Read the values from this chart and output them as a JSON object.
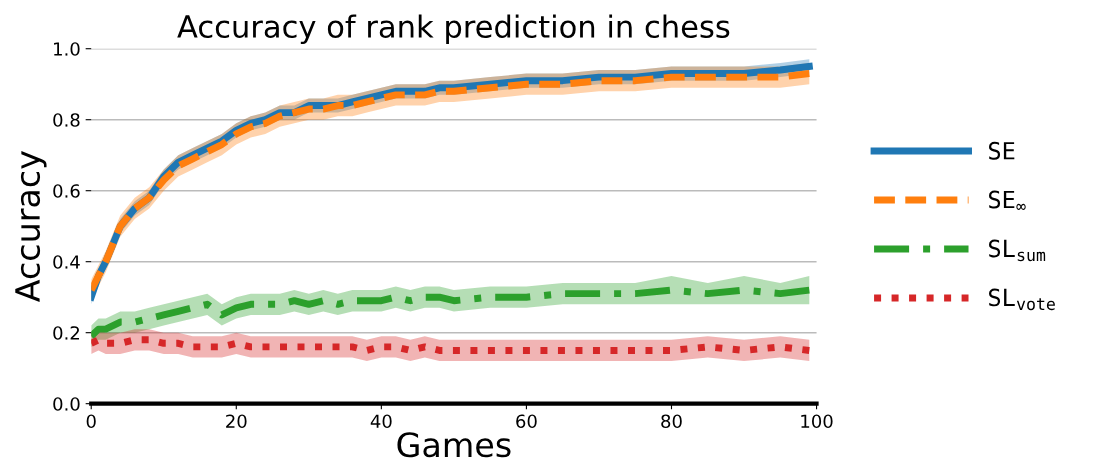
{
  "chart_data": {
    "type": "line",
    "title": "Accuracy of rank prediction in chess",
    "xlabel": "Games",
    "ylabel": "Accuracy",
    "x": [
      0,
      1,
      2,
      4,
      6,
      8,
      10,
      12,
      14,
      16,
      18,
      20,
      22,
      24,
      26,
      28,
      30,
      32,
      34,
      36,
      38,
      40,
      42,
      44,
      46,
      48,
      50,
      55,
      60,
      65,
      70,
      75,
      80,
      85,
      90,
      95,
      99
    ],
    "series": [
      {
        "name": "SE",
        "color": "#1f77b4",
        "line_style": "solid",
        "values": [
          0.3,
          0.36,
          0.4,
          0.5,
          0.55,
          0.58,
          0.64,
          0.68,
          0.7,
          0.72,
          0.74,
          0.77,
          0.79,
          0.8,
          0.82,
          0.82,
          0.84,
          0.84,
          0.84,
          0.85,
          0.86,
          0.87,
          0.88,
          0.88,
          0.88,
          0.89,
          0.89,
          0.9,
          0.91,
          0.91,
          0.92,
          0.92,
          0.93,
          0.93,
          0.93,
          0.94,
          0.95
        ],
        "lower": [
          0.28,
          0.34,
          0.38,
          0.48,
          0.53,
          0.56,
          0.62,
          0.66,
          0.68,
          0.7,
          0.72,
          0.75,
          0.77,
          0.78,
          0.8,
          0.8,
          0.82,
          0.82,
          0.82,
          0.83,
          0.84,
          0.85,
          0.86,
          0.86,
          0.86,
          0.87,
          0.87,
          0.88,
          0.89,
          0.89,
          0.9,
          0.9,
          0.91,
          0.91,
          0.91,
          0.92,
          0.93
        ],
        "upper": [
          0.32,
          0.38,
          0.42,
          0.52,
          0.57,
          0.6,
          0.66,
          0.7,
          0.72,
          0.74,
          0.76,
          0.79,
          0.81,
          0.82,
          0.84,
          0.84,
          0.86,
          0.86,
          0.86,
          0.87,
          0.88,
          0.89,
          0.9,
          0.9,
          0.9,
          0.91,
          0.91,
          0.92,
          0.93,
          0.93,
          0.94,
          0.94,
          0.95,
          0.95,
          0.95,
          0.96,
          0.97
        ]
      },
      {
        "name": "SE$_{∞}$",
        "color": "#ff7f0e",
        "line_style": "dashed",
        "values": [
          0.32,
          0.36,
          0.4,
          0.5,
          0.55,
          0.58,
          0.63,
          0.67,
          0.69,
          0.71,
          0.73,
          0.76,
          0.78,
          0.79,
          0.81,
          0.82,
          0.83,
          0.83,
          0.84,
          0.84,
          0.85,
          0.86,
          0.87,
          0.87,
          0.87,
          0.88,
          0.88,
          0.89,
          0.9,
          0.9,
          0.91,
          0.91,
          0.92,
          0.92,
          0.92,
          0.92,
          0.93
        ],
        "lower": [
          0.29,
          0.33,
          0.37,
          0.47,
          0.52,
          0.55,
          0.6,
          0.64,
          0.66,
          0.68,
          0.7,
          0.73,
          0.75,
          0.76,
          0.78,
          0.79,
          0.8,
          0.8,
          0.81,
          0.81,
          0.82,
          0.83,
          0.84,
          0.84,
          0.84,
          0.85,
          0.85,
          0.86,
          0.87,
          0.87,
          0.88,
          0.88,
          0.89,
          0.89,
          0.89,
          0.89,
          0.9
        ],
        "upper": [
          0.35,
          0.39,
          0.43,
          0.53,
          0.58,
          0.61,
          0.66,
          0.7,
          0.72,
          0.74,
          0.76,
          0.79,
          0.81,
          0.82,
          0.84,
          0.85,
          0.86,
          0.86,
          0.87,
          0.87,
          0.88,
          0.89,
          0.9,
          0.9,
          0.9,
          0.91,
          0.91,
          0.92,
          0.93,
          0.93,
          0.94,
          0.94,
          0.95,
          0.95,
          0.95,
          0.95,
          0.96
        ]
      },
      {
        "name": "SL$_{sum}$",
        "color": "#2ca02c",
        "line_style": "dashdot",
        "values": [
          0.19,
          0.21,
          0.21,
          0.23,
          0.23,
          0.24,
          0.25,
          0.26,
          0.27,
          0.28,
          0.25,
          0.27,
          0.28,
          0.28,
          0.28,
          0.29,
          0.28,
          0.29,
          0.28,
          0.29,
          0.29,
          0.29,
          0.3,
          0.29,
          0.3,
          0.3,
          0.29,
          0.3,
          0.3,
          0.31,
          0.31,
          0.31,
          0.32,
          0.31,
          0.32,
          0.31,
          0.32
        ],
        "lower": [
          0.16,
          0.18,
          0.18,
          0.2,
          0.2,
          0.21,
          0.22,
          0.23,
          0.24,
          0.25,
          0.22,
          0.24,
          0.25,
          0.25,
          0.25,
          0.26,
          0.25,
          0.26,
          0.25,
          0.26,
          0.26,
          0.26,
          0.27,
          0.26,
          0.27,
          0.27,
          0.26,
          0.27,
          0.27,
          0.28,
          0.28,
          0.28,
          0.28,
          0.28,
          0.28,
          0.28,
          0.28
        ],
        "upper": [
          0.22,
          0.24,
          0.24,
          0.26,
          0.26,
          0.27,
          0.28,
          0.29,
          0.3,
          0.31,
          0.28,
          0.3,
          0.31,
          0.31,
          0.31,
          0.32,
          0.31,
          0.32,
          0.31,
          0.32,
          0.32,
          0.32,
          0.33,
          0.32,
          0.33,
          0.33,
          0.32,
          0.33,
          0.33,
          0.34,
          0.34,
          0.34,
          0.36,
          0.34,
          0.36,
          0.34,
          0.36
        ]
      },
      {
        "name": "SL$_{vote}$",
        "color": "#d62728",
        "line_style": "dotted",
        "values": [
          0.17,
          0.18,
          0.17,
          0.17,
          0.18,
          0.18,
          0.17,
          0.17,
          0.16,
          0.16,
          0.16,
          0.17,
          0.16,
          0.16,
          0.16,
          0.16,
          0.16,
          0.16,
          0.16,
          0.16,
          0.15,
          0.16,
          0.16,
          0.15,
          0.16,
          0.15,
          0.15,
          0.15,
          0.15,
          0.15,
          0.15,
          0.15,
          0.15,
          0.16,
          0.15,
          0.16,
          0.15
        ],
        "lower": [
          0.14,
          0.15,
          0.14,
          0.14,
          0.15,
          0.15,
          0.14,
          0.14,
          0.13,
          0.13,
          0.13,
          0.14,
          0.13,
          0.13,
          0.13,
          0.13,
          0.13,
          0.13,
          0.13,
          0.13,
          0.12,
          0.13,
          0.13,
          0.12,
          0.13,
          0.12,
          0.12,
          0.12,
          0.12,
          0.12,
          0.12,
          0.12,
          0.12,
          0.13,
          0.12,
          0.13,
          0.12
        ],
        "upper": [
          0.2,
          0.21,
          0.2,
          0.2,
          0.21,
          0.21,
          0.2,
          0.2,
          0.19,
          0.19,
          0.19,
          0.2,
          0.19,
          0.19,
          0.19,
          0.19,
          0.19,
          0.19,
          0.19,
          0.19,
          0.18,
          0.19,
          0.19,
          0.18,
          0.19,
          0.18,
          0.18,
          0.18,
          0.18,
          0.18,
          0.18,
          0.18,
          0.18,
          0.19,
          0.18,
          0.19,
          0.18
        ]
      }
    ],
    "xlim": [
      0,
      100
    ],
    "xticks": [
      0,
      20,
      40,
      60,
      80,
      100
    ],
    "ylim": [
      0,
      1.0
    ],
    "yticks": [
      {
        "value": 0,
        "label": "0.0"
      },
      {
        "value": 0.2,
        "label": "0.2"
      },
      {
        "value": 0.4,
        "label": "0.4"
      },
      {
        "value": 0.6,
        "label": "0.6"
      },
      {
        "value": 0.8,
        "label": "0.8"
      },
      {
        "value": 1.0,
        "label": "1.0"
      }
    ],
    "grid": "y",
    "legend": "right",
    "marker": "none"
  }
}
